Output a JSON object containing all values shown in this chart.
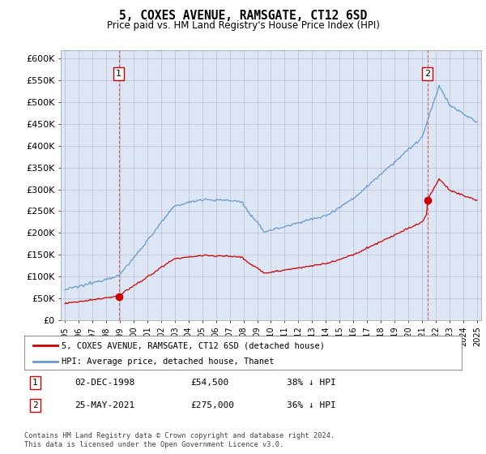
{
  "title": "5, COXES AVENUE, RAMSGATE, CT12 6SD",
  "subtitle": "Price paid vs. HM Land Registry's House Price Index (HPI)",
  "ylabel_ticks": [
    "£0",
    "£50K",
    "£100K",
    "£150K",
    "£200K",
    "£250K",
    "£300K",
    "£350K",
    "£400K",
    "£450K",
    "£500K",
    "£550K",
    "£600K"
  ],
  "ytick_vals": [
    0,
    50000,
    100000,
    150000,
    200000,
    250000,
    300000,
    350000,
    400000,
    450000,
    500000,
    550000,
    600000
  ],
  "ylim": [
    0,
    620000
  ],
  "purchase1_date": 1998.92,
  "purchase1_price": 54500,
  "purchase1_label": "1",
  "purchase2_date": 2021.38,
  "purchase2_price": 275000,
  "purchase2_label": "2",
  "legend_red": "5, COXES AVENUE, RAMSGATE, CT12 6SD (detached house)",
  "legend_blue": "HPI: Average price, detached house, Thanet",
  "table_rows": [
    [
      "1",
      "02-DEC-1998",
      "£54,500",
      "38% ↓ HPI"
    ],
    [
      "2",
      "25-MAY-2021",
      "£275,000",
      "36% ↓ HPI"
    ]
  ],
  "footnote": "Contains HM Land Registry data © Crown copyright and database right 2024.\nThis data is licensed under the Open Government Licence v3.0.",
  "bg_color": "#ffffff",
  "plot_bg": "#dce6f5",
  "red_color": "#cc0000",
  "blue_color": "#6699cc",
  "grid_color": "#bbbbcc"
}
